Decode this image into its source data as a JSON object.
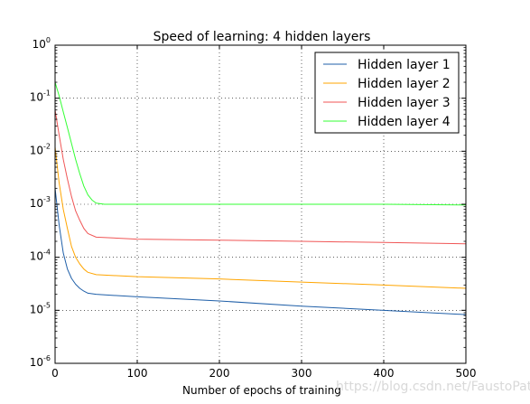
{
  "chart_data": {
    "type": "line",
    "title": "Speed of learning: 4 hidden layers",
    "xlabel": "Number of epochs of training",
    "ylabel": "",
    "xlim": [
      0,
      500
    ],
    "ylim": [
      1e-06,
      1
    ],
    "yscale": "log",
    "grid": true,
    "legend_position": "top-right",
    "x_ticks": [
      "0",
      "100",
      "200",
      "300",
      "400",
      "500"
    ],
    "y_ticks": [
      {
        "base": "10",
        "exp": "0"
      },
      {
        "base": "10",
        "exp": "-1"
      },
      {
        "base": "10",
        "exp": "-2"
      },
      {
        "base": "10",
        "exp": "-3"
      },
      {
        "base": "10",
        "exp": "-4"
      },
      {
        "base": "10",
        "exp": "-5"
      },
      {
        "base": "10",
        "exp": "-6"
      }
    ],
    "series": [
      {
        "name": "Hidden layer 1",
        "color": "#1f5fa8",
        "points": [
          [
            0,
            0.002
          ],
          [
            5,
            0.0004
          ],
          [
            10,
            0.00012
          ],
          [
            15,
            6e-05
          ],
          [
            20,
            4e-05
          ],
          [
            25,
            3.1e-05
          ],
          [
            30,
            2.6e-05
          ],
          [
            35,
            2.3e-05
          ],
          [
            40,
            2.1e-05
          ],
          [
            50,
            2e-05
          ],
          [
            100,
            1.8e-05
          ],
          [
            200,
            1.5e-05
          ],
          [
            300,
            1.2e-05
          ],
          [
            400,
            1e-05
          ],
          [
            500,
            8.3e-06
          ]
        ]
      },
      {
        "name": "Hidden layer 2",
        "color": "#ffa500",
        "points": [
          [
            0,
            0.012
          ],
          [
            5,
            0.0025
          ],
          [
            10,
            0.0008
          ],
          [
            15,
            0.00035
          ],
          [
            20,
            0.00016
          ],
          [
            25,
            0.0001
          ],
          [
            30,
            7.5e-05
          ],
          [
            35,
            6e-05
          ],
          [
            40,
            5.2e-05
          ],
          [
            50,
            4.7e-05
          ],
          [
            100,
            4.3e-05
          ],
          [
            200,
            3.9e-05
          ],
          [
            300,
            3.4e-05
          ],
          [
            400,
            3e-05
          ],
          [
            500,
            2.6e-05
          ]
        ]
      },
      {
        "name": "Hidden layer 3",
        "color": "#f05656",
        "points": [
          [
            0,
            0.06
          ],
          [
            5,
            0.02
          ],
          [
            10,
            0.007
          ],
          [
            15,
            0.003
          ],
          [
            20,
            0.0014
          ],
          [
            25,
            0.00075
          ],
          [
            30,
            0.0005
          ],
          [
            35,
            0.00035
          ],
          [
            40,
            0.00028
          ],
          [
            50,
            0.00024
          ],
          [
            100,
            0.00022
          ],
          [
            200,
            0.00021
          ],
          [
            300,
            0.0002
          ],
          [
            400,
            0.00019
          ],
          [
            500,
            0.00018
          ]
        ]
      },
      {
        "name": "Hidden layer 4",
        "color": "#33ff33",
        "points": [
          [
            0,
            0.2
          ],
          [
            5,
            0.11
          ],
          [
            10,
            0.055
          ],
          [
            15,
            0.028
          ],
          [
            20,
            0.014
          ],
          [
            25,
            0.007
          ],
          [
            30,
            0.0038
          ],
          [
            35,
            0.0022
          ],
          [
            40,
            0.0015
          ],
          [
            45,
            0.0012
          ],
          [
            50,
            0.00105
          ],
          [
            60,
            0.001
          ],
          [
            100,
            0.001
          ],
          [
            200,
            0.001
          ],
          [
            300,
            0.001
          ],
          [
            400,
            0.001
          ],
          [
            500,
            0.00097
          ]
        ]
      }
    ]
  },
  "watermark": "https://blog.csdn.net/FaustoPatton"
}
